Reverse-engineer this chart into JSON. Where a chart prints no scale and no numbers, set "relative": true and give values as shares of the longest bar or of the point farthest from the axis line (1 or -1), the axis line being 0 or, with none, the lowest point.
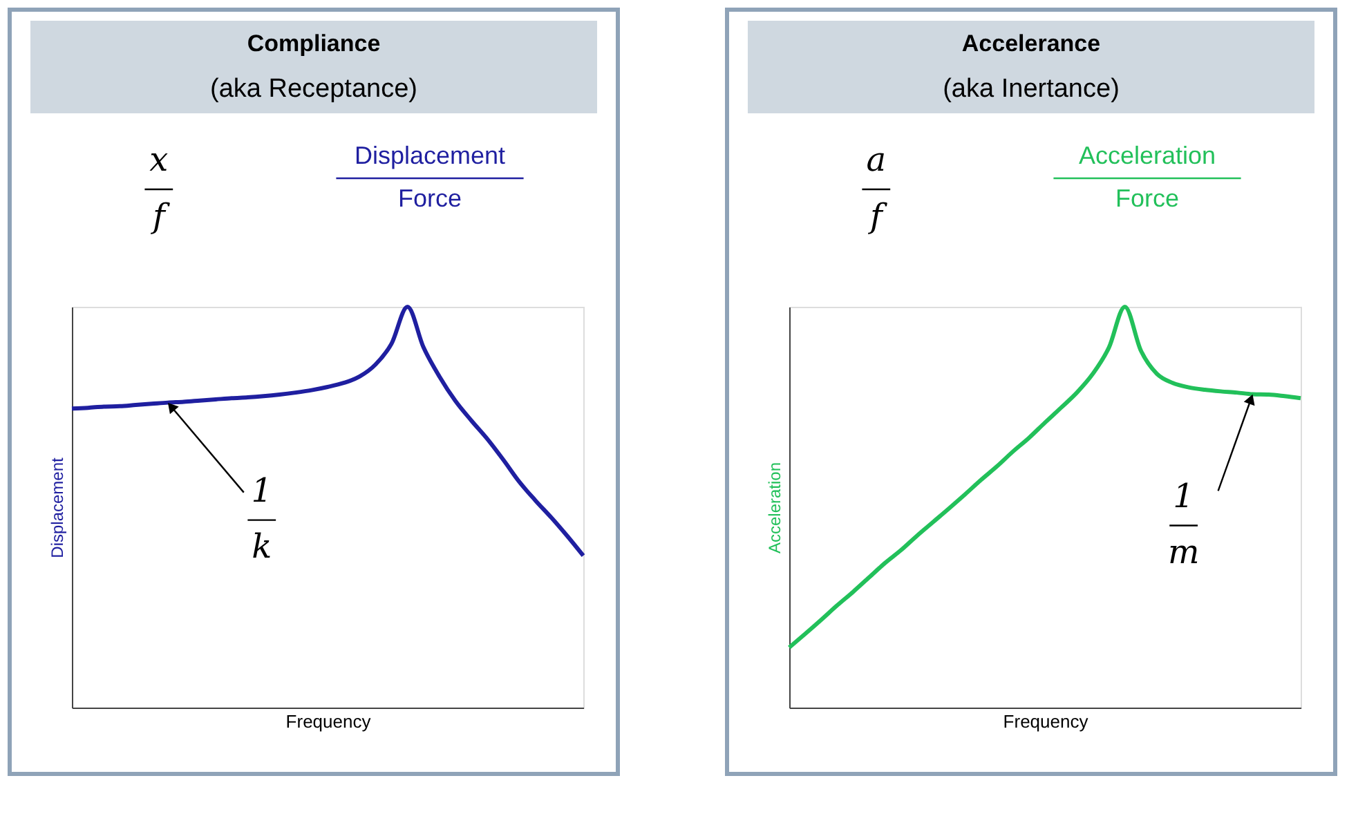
{
  "chart_data": [
    {
      "type": "line",
      "title": "Compliance",
      "subtitle": "(aka Receptance)",
      "xlabel": "Frequency",
      "ylabel": "Displacement",
      "relative": true,
      "categories": [
        null,
        null,
        null,
        null,
        null,
        null,
        null,
        null,
        null,
        null,
        null,
        null,
        null,
        null,
        null,
        null,
        null,
        null,
        null,
        null,
        null,
        null,
        null,
        null,
        null,
        null,
        null,
        null,
        null,
        null,
        null,
        null,
        null
      ],
      "series": [
        {
          "color": "#1f1fa0",
          "values": [
            0.746,
            0.748,
            0.751,
            0.752,
            0.755,
            0.758,
            0.761,
            0.763,
            0.766,
            0.769,
            0.772,
            0.774,
            0.777,
            0.781,
            0.786,
            0.792,
            0.8,
            0.81,
            0.826,
            0.856,
            0.908,
            1.0,
            0.899,
            0.826,
            0.765,
            0.716,
            0.67,
            0.618,
            0.563,
            0.517,
            0.474,
            0.428,
            0.379
          ]
        }
      ],
      "annotations": [
        "x",
        "f",
        "Displacement",
        "Force",
        {
          "text": "1",
          "y": 0.761
        },
        "k"
      ]
    },
    {
      "type": "line",
      "title": "Accelerance",
      "subtitle": "(aka Inertance)",
      "xlabel": "Frequency",
      "ylabel": "Acceleration",
      "relative": true,
      "categories": [
        null,
        null,
        null,
        null,
        null,
        null,
        null,
        null,
        null,
        null,
        null,
        null,
        null,
        null,
        null,
        null,
        null,
        null,
        null,
        null,
        null,
        null,
        null,
        null,
        null,
        null,
        null,
        null,
        null,
        null,
        null,
        null,
        null
      ],
      "series": [
        {
          "color": "#22c05a",
          "values": [
            0.15,
            0.184,
            0.219,
            0.255,
            0.289,
            0.325,
            0.361,
            0.393,
            0.429,
            0.463,
            0.497,
            0.532,
            0.568,
            0.602,
            0.639,
            0.673,
            0.711,
            0.748,
            0.786,
            0.833,
            0.898,
            1.0,
            0.891,
            0.833,
            0.81,
            0.799,
            0.793,
            0.789,
            0.786,
            0.782,
            0.781,
            0.777,
            0.772
          ]
        }
      ],
      "annotations": [
        "a",
        "f",
        "Acceleration",
        "Force",
        {
          "text": "1",
          "y": 0.782
        },
        "m"
      ]
    }
  ]
}
